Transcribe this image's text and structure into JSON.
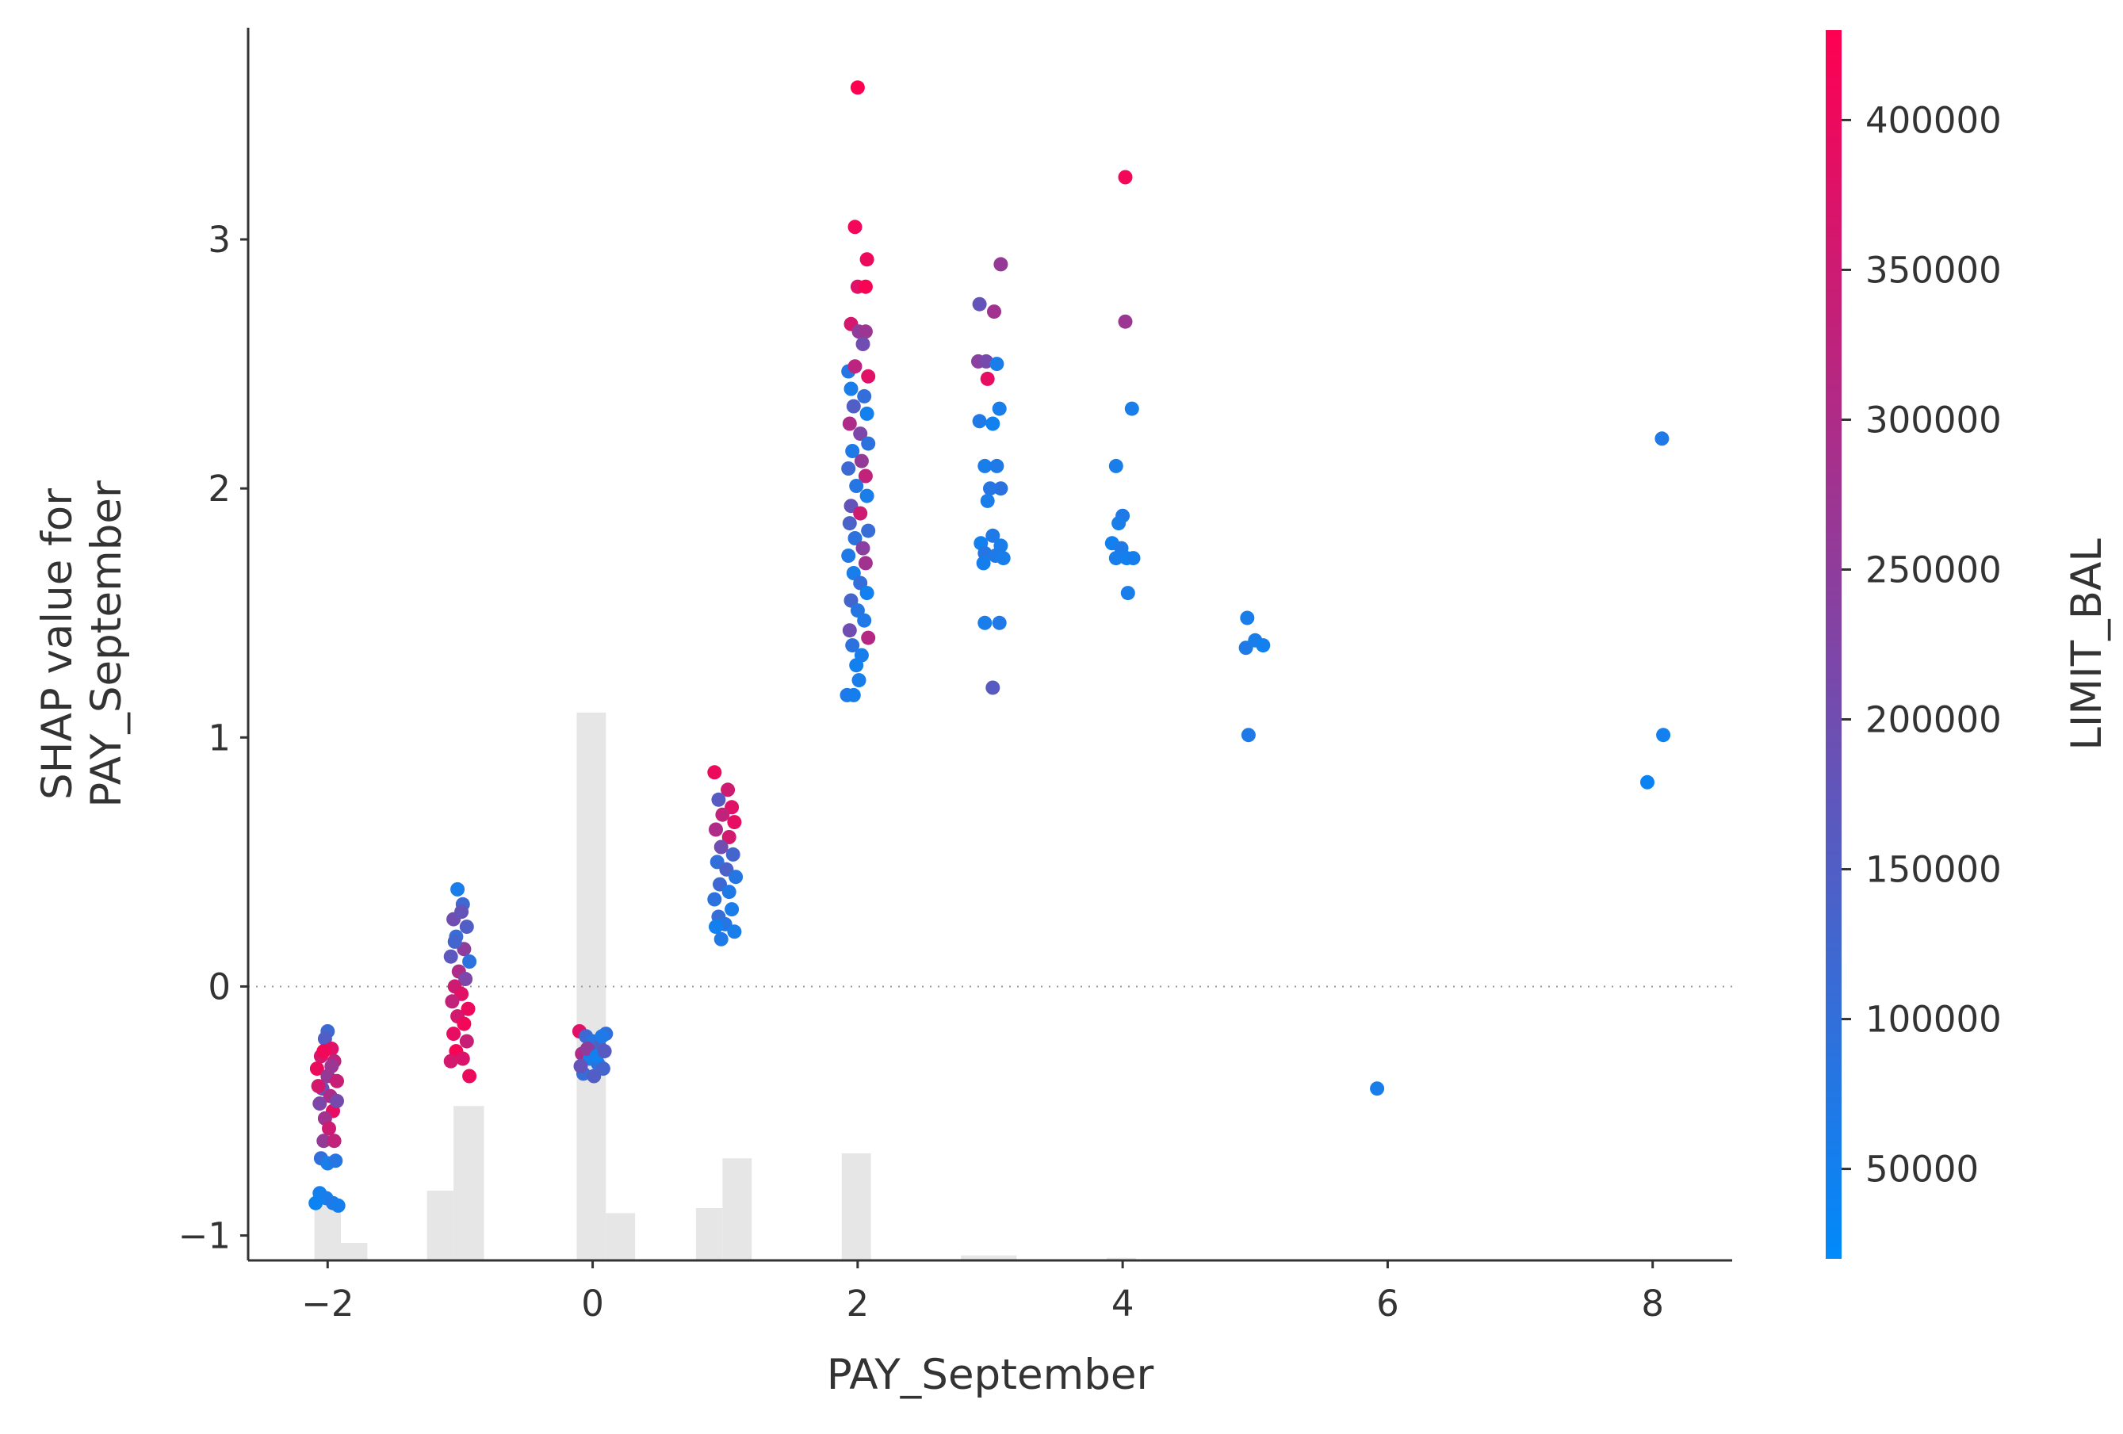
{
  "chart_data": {
    "type": "scatter",
    "xlabel": "PAY_September",
    "ylabel_lines": [
      "SHAP value for",
      "PAY_September"
    ],
    "xlim": [
      -2.6,
      8.6
    ],
    "ylim": [
      -1.1,
      3.85
    ],
    "xticks": [
      -2,
      0,
      2,
      4,
      6,
      8
    ],
    "xtick_labels": [
      "−2",
      "0",
      "2",
      "4",
      "6",
      "8"
    ],
    "yticks": [
      -1,
      0,
      1,
      2,
      3
    ],
    "ytick_labels": [
      "−1",
      "0",
      "1",
      "2",
      "3"
    ],
    "zero_line": 0,
    "grid": false,
    "colorbar": {
      "label": "LIMIT_BAL",
      "range": [
        20000,
        430000
      ],
      "ticks": [
        50000,
        100000,
        150000,
        200000,
        250000,
        300000,
        350000,
        400000
      ],
      "tick_labels": [
        "50000",
        "100000",
        "150000",
        "200000",
        "250000",
        "300000",
        "350000",
        "400000"
      ],
      "colormap": [
        "#008afb",
        "#ff0051"
      ]
    },
    "histogram": {
      "color": "#e6e6e6",
      "bins": [
        {
          "x0": -2.1,
          "x1": -1.9,
          "h": 0.22
        },
        {
          "x0": -1.9,
          "x1": -1.7,
          "h": 0.07
        },
        {
          "x0": -1.25,
          "x1": -1.05,
          "h": 0.28
        },
        {
          "x0": -1.05,
          "x1": -0.82,
          "h": 0.62
        },
        {
          "x0": -0.12,
          "x1": 0.1,
          "h": 2.2
        },
        {
          "x0": 0.1,
          "x1": 0.32,
          "h": 0.19
        },
        {
          "x0": 0.78,
          "x1": 0.98,
          "h": 0.21
        },
        {
          "x0": 0.98,
          "x1": 1.2,
          "h": 0.41
        },
        {
          "x0": 1.88,
          "x1": 2.1,
          "h": 0.43
        },
        {
          "x0": 2.78,
          "x1": 3.2,
          "h": 0.02
        },
        {
          "x0": 3.88,
          "x1": 4.1,
          "h": 0.01
        }
      ]
    },
    "series": [
      {
        "points": [
          [
            -2.0,
            -0.18,
            120000
          ],
          [
            -2.02,
            -0.21,
            150000
          ],
          [
            -1.97,
            -0.25,
            380000
          ],
          [
            -2.05,
            -0.28,
            360000
          ],
          [
            -1.95,
            -0.3,
            320000
          ],
          [
            -2.08,
            -0.33,
            400000
          ],
          [
            -2.0,
            -0.36,
            260000
          ],
          [
            -1.93,
            -0.38,
            340000
          ],
          [
            -2.04,
            -0.41,
            180000
          ],
          [
            -1.98,
            -0.44,
            300000
          ],
          [
            -2.06,
            -0.47,
            220000
          ],
          [
            -1.96,
            -0.5,
            390000
          ],
          [
            -2.02,
            -0.53,
            280000
          ],
          [
            -1.99,
            -0.57,
            350000
          ],
          [
            -2.03,
            -0.62,
            260000
          ],
          [
            -1.95,
            -0.62,
            330000
          ],
          [
            -2.05,
            -0.69,
            100000
          ],
          [
            -2.0,
            -0.71,
            60000
          ],
          [
            -1.94,
            -0.7,
            80000
          ],
          [
            -2.06,
            -0.83,
            50000
          ],
          [
            -2.01,
            -0.85,
            60000
          ],
          [
            -1.96,
            -0.87,
            70000
          ],
          [
            -2.09,
            -0.87,
            40000
          ],
          [
            -1.92,
            -0.88,
            55000
          ],
          [
            -2.03,
            -0.26,
            410000
          ],
          [
            -1.97,
            -0.32,
            270000
          ],
          [
            -2.07,
            -0.4,
            360000
          ],
          [
            -1.93,
            -0.46,
            210000
          ],
          [
            -1.02,
            0.39,
            60000
          ],
          [
            -0.98,
            0.33,
            120000
          ],
          [
            -1.05,
            0.27,
            200000
          ],
          [
            -0.95,
            0.24,
            150000
          ],
          [
            -1.03,
            0.2,
            110000
          ],
          [
            -0.97,
            0.15,
            250000
          ],
          [
            -1.07,
            0.12,
            170000
          ],
          [
            -0.93,
            0.1,
            90000
          ],
          [
            -1.01,
            0.06,
            300000
          ],
          [
            -0.96,
            0.03,
            220000
          ],
          [
            -1.04,
            0.0,
            350000
          ],
          [
            -0.99,
            -0.03,
            380000
          ],
          [
            -1.06,
            -0.06,
            330000
          ],
          [
            -0.94,
            -0.09,
            400000
          ],
          [
            -1.02,
            -0.12,
            360000
          ],
          [
            -0.97,
            -0.15,
            410000
          ],
          [
            -1.05,
            -0.19,
            390000
          ],
          [
            -0.95,
            -0.22,
            340000
          ],
          [
            -1.03,
            -0.26,
            420000
          ],
          [
            -0.98,
            -0.29,
            370000
          ],
          [
            -0.93,
            -0.36,
            400000
          ],
          [
            -1.07,
            -0.3,
            360000
          ],
          [
            -0.99,
            0.3,
            180000
          ],
          [
            -1.04,
            0.18,
            130000
          ],
          [
            -0.1,
            -0.18,
            380000
          ],
          [
            -0.05,
            -0.2,
            120000
          ],
          [
            0.0,
            -0.22,
            80000
          ],
          [
            0.05,
            -0.24,
            140000
          ],
          [
            0.1,
            -0.19,
            100000
          ],
          [
            -0.08,
            -0.27,
            300000
          ],
          [
            -0.02,
            -0.29,
            60000
          ],
          [
            0.04,
            -0.31,
            90000
          ],
          [
            0.08,
            -0.33,
            130000
          ],
          [
            -0.07,
            -0.35,
            110000
          ],
          [
            0.01,
            -0.36,
            150000
          ],
          [
            0.07,
            -0.2,
            70000
          ],
          [
            -0.04,
            -0.25,
            250000
          ],
          [
            0.03,
            -0.28,
            50000
          ],
          [
            -0.09,
            -0.32,
            180000
          ],
          [
            0.09,
            -0.26,
            160000
          ],
          [
            0.92,
            0.86,
            400000
          ],
          [
            1.02,
            0.79,
            350000
          ],
          [
            0.95,
            0.75,
            160000
          ],
          [
            1.05,
            0.72,
            380000
          ],
          [
            0.98,
            0.69,
            330000
          ],
          [
            1.07,
            0.66,
            390000
          ],
          [
            0.93,
            0.63,
            300000
          ],
          [
            1.03,
            0.6,
            360000
          ],
          [
            0.97,
            0.56,
            200000
          ],
          [
            1.06,
            0.53,
            130000
          ],
          [
            0.94,
            0.5,
            100000
          ],
          [
            1.01,
            0.47,
            140000
          ],
          [
            1.08,
            0.44,
            80000
          ],
          [
            0.96,
            0.41,
            120000
          ],
          [
            1.03,
            0.38,
            70000
          ],
          [
            0.92,
            0.35,
            90000
          ],
          [
            1.05,
            0.31,
            60000
          ],
          [
            0.95,
            0.28,
            110000
          ],
          [
            1.0,
            0.25,
            80000
          ],
          [
            0.97,
            0.19,
            70000
          ],
          [
            1.07,
            0.22,
            60000
          ],
          [
            0.93,
            0.24,
            50000
          ],
          [
            2.0,
            3.61,
            430000
          ],
          [
            1.98,
            3.05,
            410000
          ],
          [
            2.07,
            2.92,
            400000
          ],
          [
            2.0,
            2.81,
            380000
          ],
          [
            2.06,
            2.81,
            420000
          ],
          [
            1.95,
            2.66,
            360000
          ],
          [
            2.01,
            2.63,
            250000
          ],
          [
            2.06,
            2.63,
            270000
          ],
          [
            2.04,
            2.58,
            200000
          ],
          [
            1.93,
            2.47,
            80000
          ],
          [
            1.98,
            2.49,
            320000
          ],
          [
            2.08,
            2.45,
            380000
          ],
          [
            1.95,
            2.4,
            60000
          ],
          [
            2.05,
            2.37,
            100000
          ],
          [
            1.97,
            2.33,
            150000
          ],
          [
            2.07,
            2.3,
            50000
          ],
          [
            1.94,
            2.26,
            300000
          ],
          [
            2.02,
            2.22,
            220000
          ],
          [
            2.08,
            2.18,
            90000
          ],
          [
            1.96,
            2.15,
            70000
          ],
          [
            2.03,
            2.11,
            260000
          ],
          [
            1.93,
            2.08,
            120000
          ],
          [
            2.06,
            2.05,
            330000
          ],
          [
            1.99,
            2.01,
            80000
          ],
          [
            2.07,
            1.97,
            60000
          ],
          [
            1.95,
            1.93,
            180000
          ],
          [
            2.02,
            1.9,
            350000
          ],
          [
            1.94,
            1.86,
            140000
          ],
          [
            2.08,
            1.83,
            110000
          ],
          [
            1.98,
            1.8,
            90000
          ],
          [
            2.04,
            1.76,
            240000
          ],
          [
            1.93,
            1.73,
            70000
          ],
          [
            2.06,
            1.7,
            280000
          ],
          [
            1.97,
            1.66,
            60000
          ],
          [
            2.02,
            1.62,
            100000
          ],
          [
            2.07,
            1.58,
            50000
          ],
          [
            1.95,
            1.55,
            130000
          ],
          [
            2.0,
            1.51,
            80000
          ],
          [
            2.05,
            1.47,
            70000
          ],
          [
            1.94,
            1.43,
            200000
          ],
          [
            2.08,
            1.4,
            310000
          ],
          [
            1.96,
            1.37,
            90000
          ],
          [
            2.03,
            1.33,
            60000
          ],
          [
            1.99,
            1.29,
            50000
          ],
          [
            2.01,
            1.23,
            60000
          ],
          [
            1.92,
            1.17,
            70000
          ],
          [
            1.97,
            1.17,
            55000
          ],
          [
            2.92,
            2.74,
            180000
          ],
          [
            3.03,
            2.71,
            280000
          ],
          [
            3.08,
            2.9,
            260000
          ],
          [
            2.91,
            2.51,
            240000
          ],
          [
            2.97,
            2.51,
            210000
          ],
          [
            3.05,
            2.5,
            60000
          ],
          [
            2.98,
            2.44,
            390000
          ],
          [
            3.07,
            2.32,
            60000
          ],
          [
            2.92,
            2.27,
            70000
          ],
          [
            3.02,
            2.26,
            50000
          ],
          [
            2.96,
            2.09,
            60000
          ],
          [
            3.05,
            2.09,
            70000
          ],
          [
            3.08,
            2.0,
            90000
          ],
          [
            3.0,
            2.0,
            80000
          ],
          [
            2.98,
            1.95,
            60000
          ],
          [
            3.02,
            1.81,
            70000
          ],
          [
            2.93,
            1.78,
            50000
          ],
          [
            3.08,
            1.77,
            60000
          ],
          [
            2.96,
            1.74,
            80000
          ],
          [
            3.04,
            1.73,
            70000
          ],
          [
            3.1,
            1.72,
            60000
          ],
          [
            2.95,
            1.7,
            55000
          ],
          [
            2.96,
            1.46,
            60000
          ],
          [
            3.07,
            1.46,
            70000
          ],
          [
            3.02,
            1.2,
            160000
          ],
          [
            3.95,
            2.09,
            60000
          ],
          [
            4.02,
            3.25,
            410000
          ],
          [
            4.02,
            2.67,
            270000
          ],
          [
            4.07,
            2.32,
            60000
          ],
          [
            4.0,
            1.89,
            70000
          ],
          [
            3.97,
            1.86,
            60000
          ],
          [
            3.92,
            1.78,
            50000
          ],
          [
            3.99,
            1.76,
            70000
          ],
          [
            3.95,
            1.72,
            60000
          ],
          [
            4.03,
            1.72,
            50000
          ],
          [
            4.08,
            1.72,
            55000
          ],
          [
            4.04,
            1.58,
            60000
          ],
          [
            4.94,
            1.48,
            60000
          ],
          [
            4.93,
            1.36,
            70000
          ],
          [
            5.0,
            1.39,
            60000
          ],
          [
            5.06,
            1.37,
            50000
          ],
          [
            4.95,
            1.01,
            70000
          ],
          [
            5.92,
            -0.41,
            60000
          ],
          [
            8.07,
            2.2,
            70000
          ],
          [
            8.08,
            1.01,
            50000
          ],
          [
            7.96,
            0.82,
            40000
          ]
        ]
      }
    ]
  }
}
